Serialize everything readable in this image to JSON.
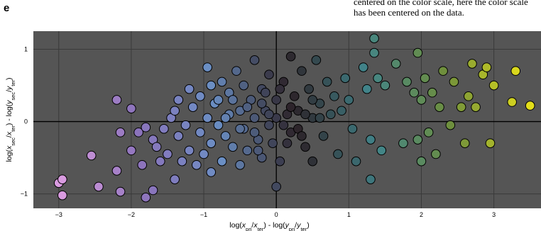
{
  "panel_label": "e",
  "caption_text": "centered on the color scale, here the color scale has been centered on the data.",
  "chart_data": {
    "type": "scatter",
    "xlabel": "log(x_pri/x_ter) - log(y_pri/y_ter)",
    "ylabel": "log(x_sec/x_ter) - log(y_sec/y_ter)",
    "xlim": [
      -3.35,
      3.65
    ],
    "ylim": [
      -1.2,
      1.25
    ],
    "xticks": [
      -3,
      -2,
      -1,
      0,
      1,
      2,
      3
    ],
    "yticks": [
      -1,
      0,
      1
    ],
    "xtick_labels": [
      "−3",
      "−2",
      "−1",
      "0",
      "1",
      "2",
      "3"
    ],
    "ytick_labels": [
      "−1",
      "0",
      "1"
    ],
    "grid": true,
    "background": "#555555",
    "color_scale": [
      "#d99be0",
      "#8b73bb",
      "#6b8fc4",
      "#2c2228",
      "#41848a",
      "#6f8f3c",
      "#e3de1a"
    ],
    "points": [
      [
        -3.0,
        -0.85
      ],
      [
        -2.95,
        -0.8
      ],
      [
        -2.95,
        -1.02
      ],
      [
        -2.55,
        -0.47
      ],
      [
        -2.45,
        -0.9
      ],
      [
        -2.2,
        -0.68
      ],
      [
        -2.15,
        -0.97
      ],
      [
        -2.2,
        0.3
      ],
      [
        -2.15,
        -0.15
      ],
      [
        -2.0,
        0.18
      ],
      [
        -2.0,
        -0.4
      ],
      [
        -1.9,
        -0.15
      ],
      [
        -1.85,
        -0.6
      ],
      [
        -1.8,
        -0.08
      ],
      [
        -1.8,
        -1.05
      ],
      [
        -1.7,
        -0.95
      ],
      [
        -1.7,
        -0.25
      ],
      [
        -1.65,
        -0.35
      ],
      [
        -1.6,
        -0.55
      ],
      [
        -1.55,
        -0.1
      ],
      [
        -1.5,
        -0.45
      ],
      [
        -1.45,
        0.05
      ],
      [
        -1.4,
        -0.8
      ],
      [
        -1.4,
        0.15
      ],
      [
        -1.35,
        0.3
      ],
      [
        -1.35,
        -0.2
      ],
      [
        -1.3,
        -0.55
      ],
      [
        -1.25,
        -0.05
      ],
      [
        -1.2,
        0.45
      ],
      [
        -1.2,
        -0.4
      ],
      [
        -1.15,
        0.2
      ],
      [
        -1.1,
        -0.6
      ],
      [
        -1.05,
        0.35
      ],
      [
        -1.05,
        -0.15
      ],
      [
        -1.0,
        -0.45
      ],
      [
        -0.95,
        0.05
      ],
      [
        -0.95,
        0.75
      ],
      [
        -0.9,
        -0.7
      ],
      [
        -0.9,
        -0.3
      ],
      [
        -0.85,
        0.25
      ],
      [
        -0.8,
        -0.05
      ],
      [
        -0.75,
        0.55
      ],
      [
        -0.75,
        -0.55
      ],
      [
        -0.7,
        -0.2
      ],
      [
        -0.65,
        0.4
      ],
      [
        -0.65,
        0.1
      ],
      [
        -0.6,
        -0.35
      ],
      [
        -0.55,
        0.7
      ],
      [
        -0.5,
        -0.6
      ],
      [
        -0.5,
        0.15
      ],
      [
        -0.45,
        0.5
      ],
      [
        -0.45,
        -0.1
      ],
      [
        -0.4,
        -0.4
      ],
      [
        -0.35,
        0.3
      ],
      [
        -0.3,
        0.05
      ],
      [
        -0.3,
        0.85
      ],
      [
        -0.25,
        -0.25
      ],
      [
        -0.2,
        0.45
      ],
      [
        -0.2,
        -0.5
      ],
      [
        -0.15,
        0.15
      ],
      [
        -0.1,
        -0.05
      ],
      [
        -0.1,
        0.65
      ],
      [
        -0.05,
        -0.3
      ],
      [
        0.0,
        0.3
      ],
      [
        0.0,
        0.05
      ],
      [
        0.0,
        -0.9
      ],
      [
        0.05,
        -0.55
      ],
      [
        0.1,
        0.55
      ],
      [
        0.15,
        0.1
      ],
      [
        0.2,
        0.9
      ],
      [
        0.2,
        -0.15
      ],
      [
        0.25,
        0.35
      ],
      [
        0.3,
        0.15
      ],
      [
        0.35,
        0.7
      ],
      [
        0.4,
        -0.35
      ],
      [
        0.45,
        0.45
      ],
      [
        0.5,
        0.05
      ],
      [
        0.5,
        -0.55
      ],
      [
        0.55,
        0.85
      ],
      [
        0.6,
        0.25
      ],
      [
        0.65,
        -0.2
      ],
      [
        0.7,
        0.55
      ],
      [
        0.75,
        0.1
      ],
      [
        0.8,
        0.35
      ],
      [
        0.85,
        -0.45
      ],
      [
        0.9,
        0.15
      ],
      [
        0.95,
        0.6
      ],
      [
        1.0,
        0.3
      ],
      [
        1.05,
        -0.1
      ],
      [
        1.1,
        -0.55
      ],
      [
        1.2,
        0.75
      ],
      [
        1.25,
        0.45
      ],
      [
        1.3,
        -0.25
      ],
      [
        1.3,
        -0.8
      ],
      [
        1.35,
        1.15
      ],
      [
        1.35,
        0.95
      ],
      [
        1.4,
        0.6
      ],
      [
        1.45,
        -0.4
      ],
      [
        1.5,
        0.5
      ],
      [
        1.65,
        0.8
      ],
      [
        1.75,
        -0.3
      ],
      [
        1.8,
        0.55
      ],
      [
        1.9,
        0.4
      ],
      [
        1.95,
        0.95
      ],
      [
        1.95,
        -0.25
      ],
      [
        2.0,
        0.3
      ],
      [
        2.0,
        -0.55
      ],
      [
        2.05,
        0.6
      ],
      [
        2.1,
        -0.15
      ],
      [
        2.15,
        0.4
      ],
      [
        2.2,
        -0.45
      ],
      [
        2.25,
        0.2
      ],
      [
        2.3,
        0.7
      ],
      [
        2.4,
        -0.05
      ],
      [
        2.45,
        0.55
      ],
      [
        2.55,
        0.2
      ],
      [
        2.6,
        -0.3
      ],
      [
        2.65,
        0.35
      ],
      [
        2.7,
        0.8
      ],
      [
        2.75,
        0.2
      ],
      [
        2.85,
        0.65
      ],
      [
        2.9,
        0.75
      ],
      [
        2.95,
        -0.3
      ],
      [
        3.0,
        0.5
      ],
      [
        3.25,
        0.27
      ],
      [
        3.3,
        0.7
      ],
      [
        3.5,
        0.22
      ],
      [
        -0.6,
        0.3
      ],
      [
        -0.4,
        0.2
      ],
      [
        -0.2,
        0.25
      ],
      [
        -0.3,
        -0.15
      ],
      [
        -0.1,
        0.1
      ],
      [
        0.1,
        -0.05
      ],
      [
        0.2,
        0.2
      ],
      [
        0.3,
        -0.1
      ],
      [
        -0.5,
        -0.1
      ],
      [
        -0.7,
        0.05
      ],
      [
        -0.8,
        0.3
      ],
      [
        -0.9,
        0.5
      ],
      [
        0.4,
        0.1
      ],
      [
        0.5,
        0.3
      ],
      [
        0.6,
        0.05
      ],
      [
        -0.15,
        0.4
      ],
      [
        0.05,
        0.45
      ],
      [
        -0.25,
        -0.4
      ],
      [
        0.15,
        -0.3
      ],
      [
        0.35,
        -0.2
      ]
    ]
  }
}
